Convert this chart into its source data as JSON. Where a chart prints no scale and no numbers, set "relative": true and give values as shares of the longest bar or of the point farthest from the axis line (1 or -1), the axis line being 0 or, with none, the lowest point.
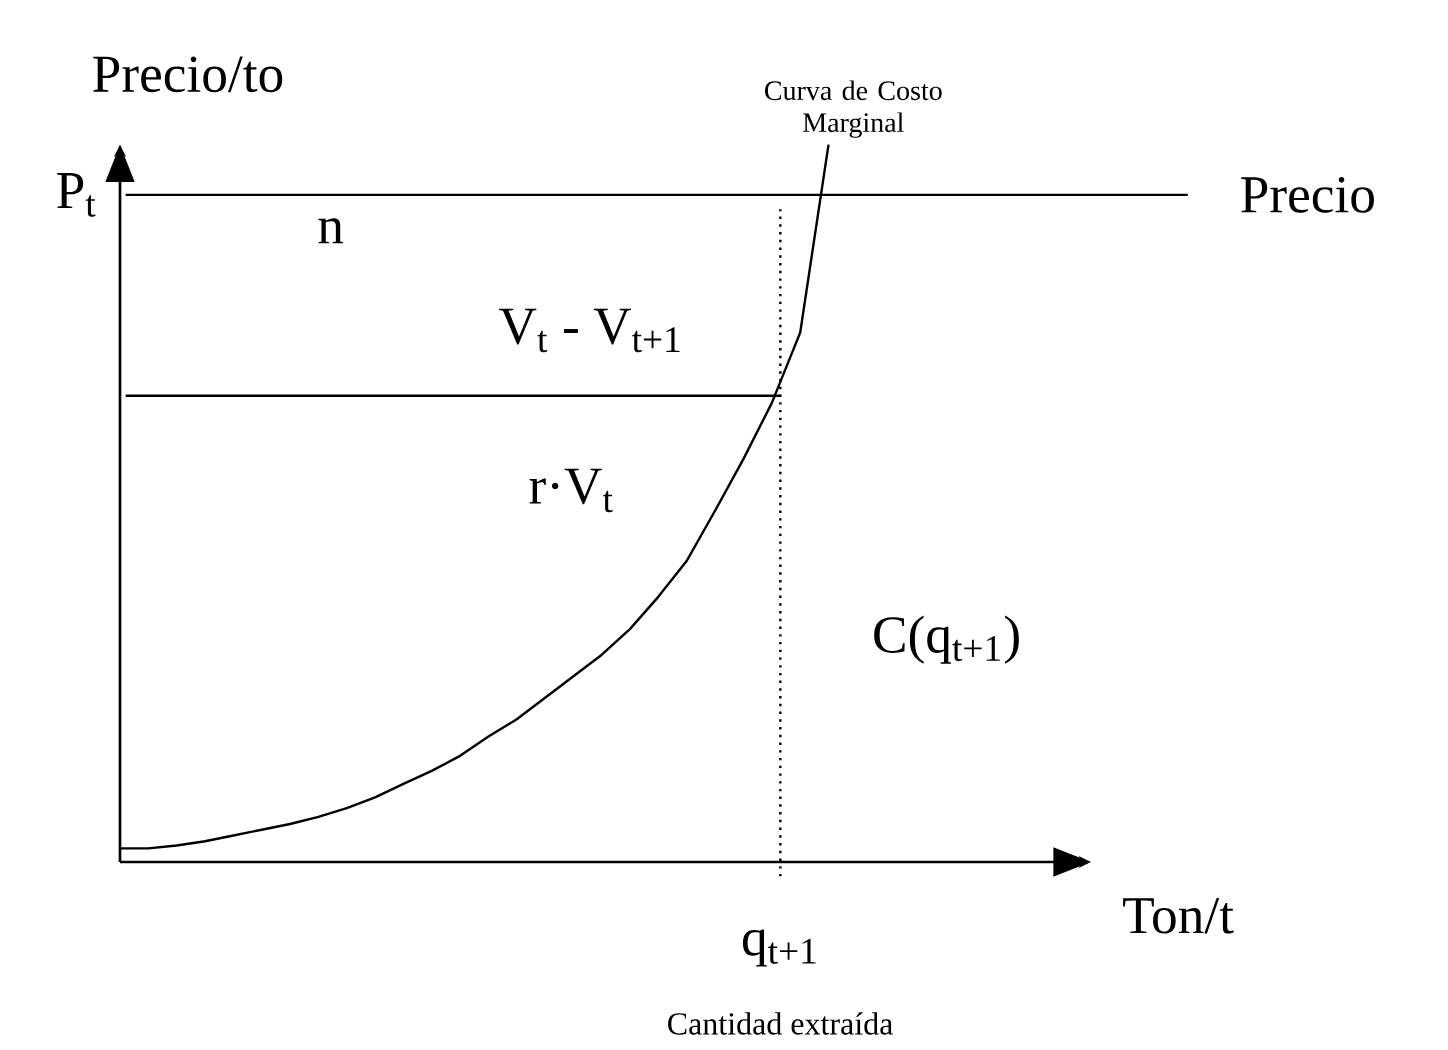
{
  "chart_data": {
    "type": "line",
    "relative": true,
    "ylabel": "Precio/to",
    "marker": "none",
    "line_style": "solid",
    "categories": [
      null,
      null,
      null,
      null,
      null,
      null,
      null,
      null,
      null,
      null,
      null,
      null,
      null,
      null,
      null,
      null,
      null,
      null,
      null,
      null,
      null,
      null,
      null,
      null,
      null,
      null
    ],
    "series": [
      {
        "name": "Curva de Costo Marginal",
        "color": "#000000",
        "values": [
          0.019,
          0.019,
          0.023,
          0.029,
          0.037,
          0.045,
          0.053,
          0.063,
          0.075,
          0.09,
          0.109,
          0.127,
          0.148,
          0.175,
          0.199,
          0.229,
          0.259,
          0.289,
          0.325,
          0.37,
          0.42,
          0.49,
          0.562,
          0.64,
          0.738,
          1.0
        ]
      }
    ],
    "ref_lines": [
      {
        "axis": "y",
        "value": 0.93,
        "label": "Precio",
        "color": "#000000",
        "line_style": "solid"
      },
      {
        "axis": "y",
        "value": 0.65,
        "label": null,
        "color": "#000000",
        "line_style": "solid"
      }
    ],
    "annotations": [
      "P$_{t}$",
      "n",
      "V$_{t}$ - V$_{t+1}$",
      "r·V$_{t}$",
      "C(q$_{t+1}$)",
      "q$_{t+1}$",
      "Cantidad extraída",
      "Ton/t"
    ]
  }
}
